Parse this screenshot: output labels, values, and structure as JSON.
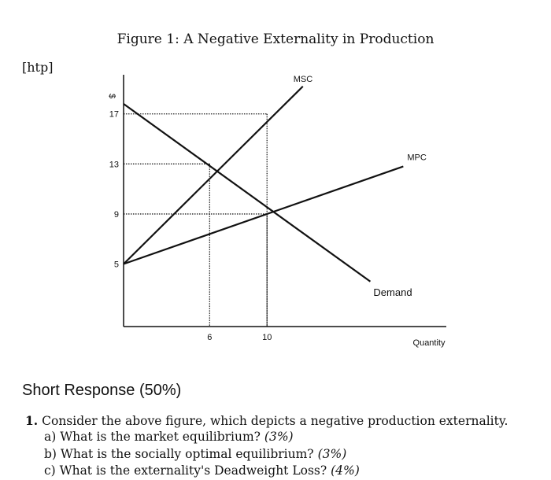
{
  "caption": "Figure 1: A Negative Externality in Production",
  "placement_note": "[htp]",
  "chart_data": {
    "type": "line",
    "xlabel": "Quantity",
    "ylabel": "$",
    "xlim": [
      0,
      22.5
    ],
    "ylim": [
      0,
      19.5
    ],
    "x_ticks": [
      6,
      10
    ],
    "y_ticks": [
      5,
      9,
      13,
      17
    ],
    "series": [
      {
        "name": "MSC",
        "points": [
          [
            0,
            5
          ],
          [
            12.5,
            19.2
          ]
        ]
      },
      {
        "name": "MPC",
        "points": [
          [
            0,
            5
          ],
          [
            19.5,
            12.8
          ]
        ]
      },
      {
        "name": "Demand",
        "points": [
          [
            0,
            17.8
          ],
          [
            17.2,
            3.6
          ]
        ]
      }
    ],
    "reference_lines": [
      {
        "x": 6,
        "y": 13
      },
      {
        "x": 10,
        "y": 9
      },
      {
        "x": 10,
        "y": 17
      }
    ]
  },
  "section": {
    "title": "Short Response (50%)"
  },
  "question": {
    "number": "1.",
    "text": "Consider the above figure, which depicts a negative production externality.",
    "parts": [
      {
        "label": "a) What is the market equilibrium?",
        "weight": "(3%)"
      },
      {
        "label": "b) What is the socially optimal equilibrium?",
        "weight": "(3%)"
      },
      {
        "label": "c) What is the externality's Deadweight Loss?",
        "weight": "(4%)"
      }
    ]
  }
}
